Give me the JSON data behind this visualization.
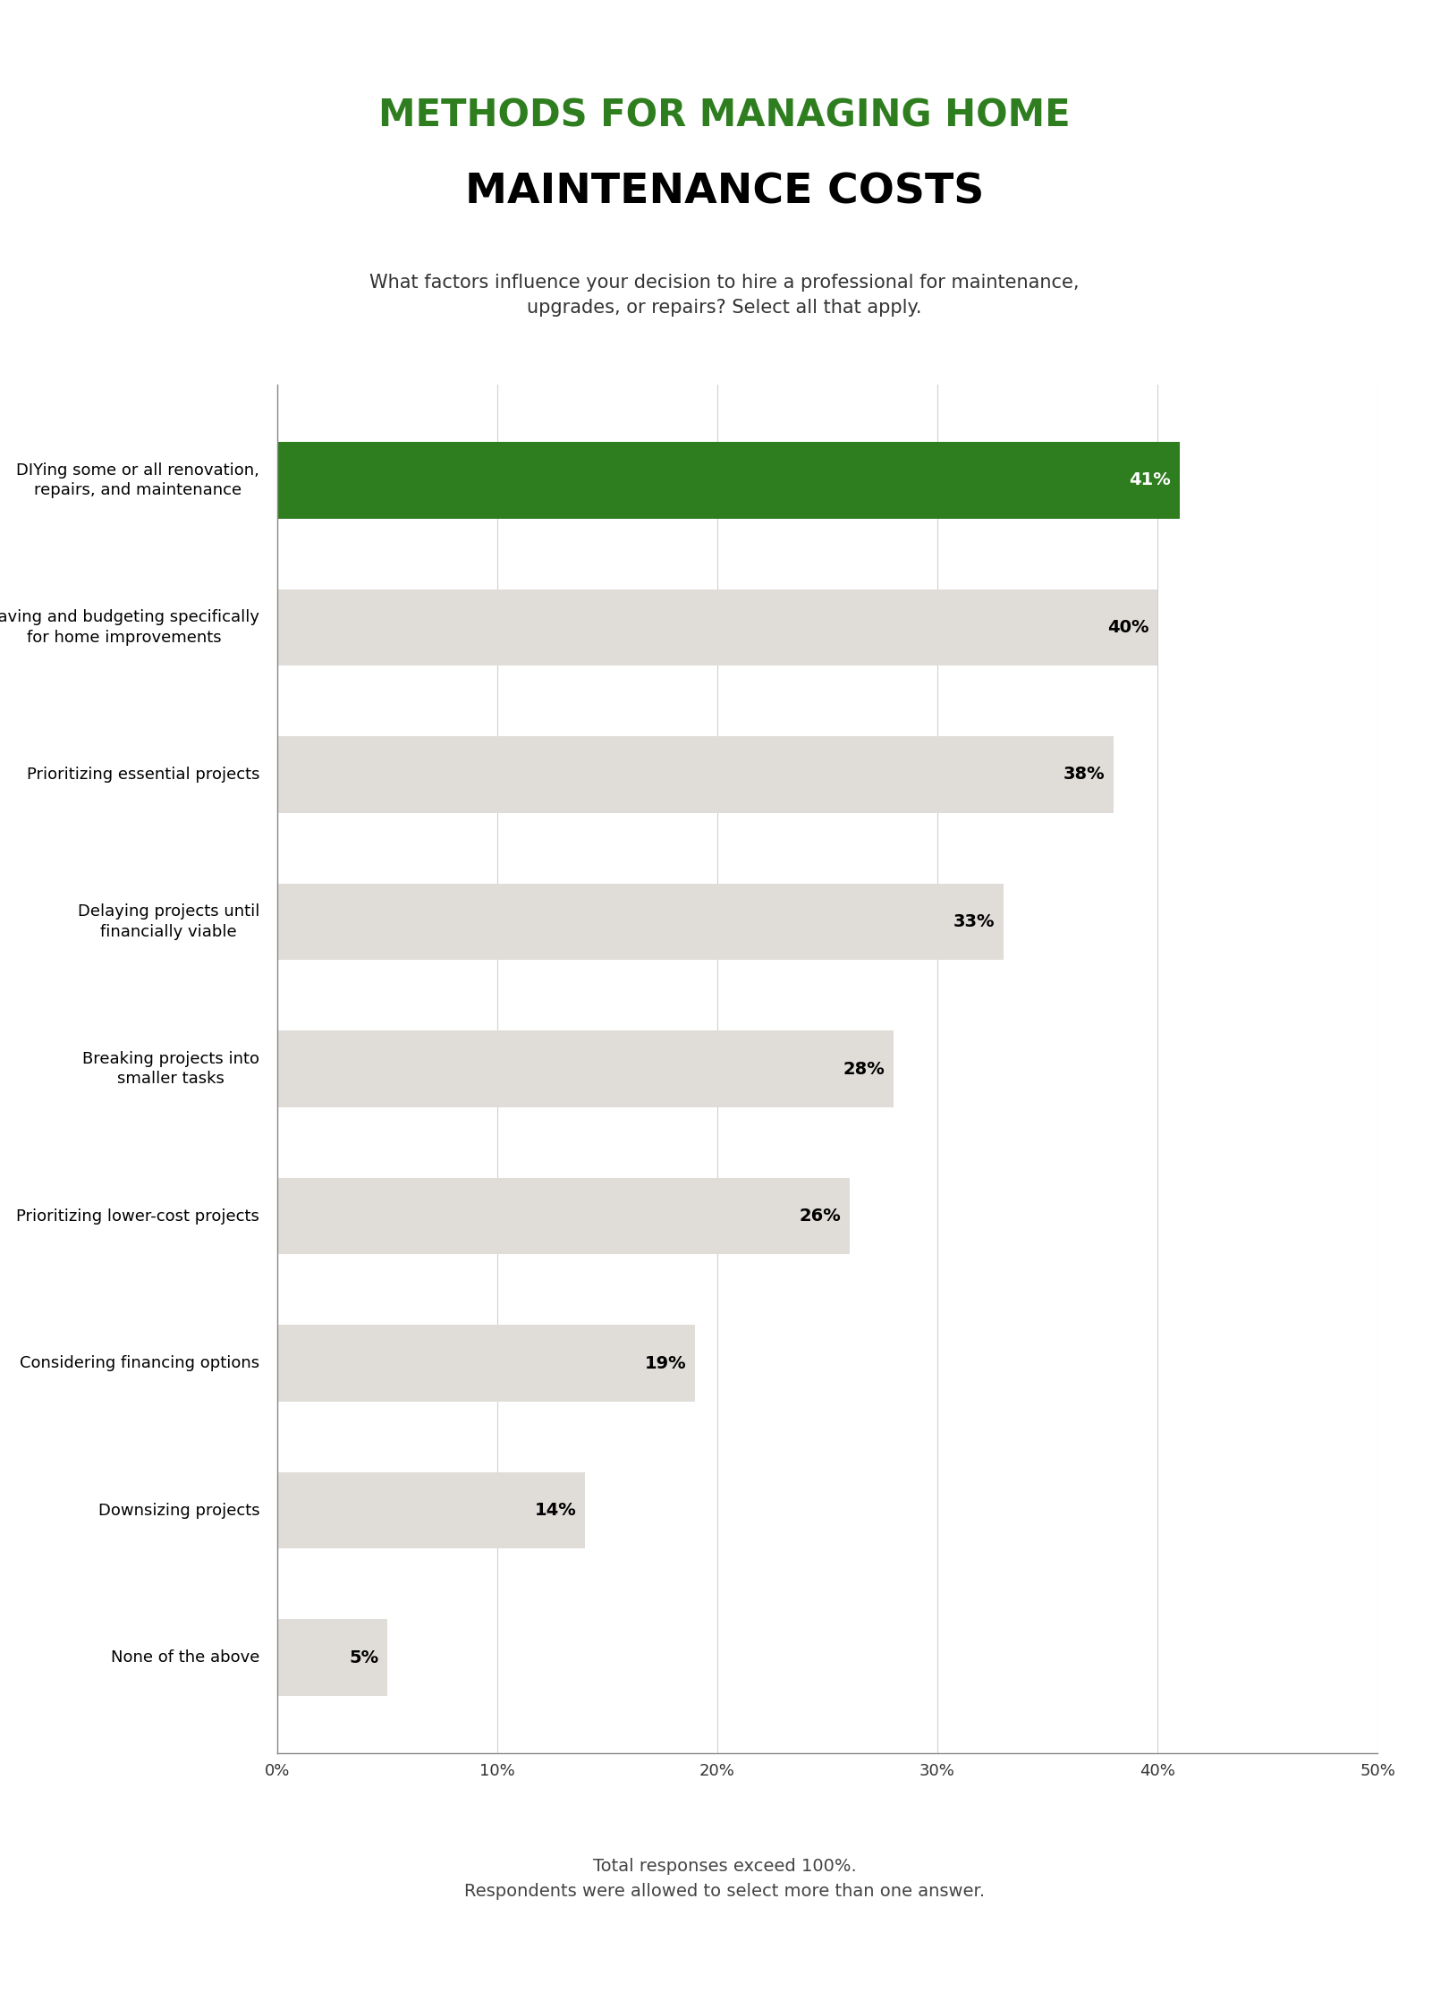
{
  "title_line1": "METHODS FOR MANAGING HOME",
  "title_line2": "MAINTENANCE COSTS",
  "subtitle": "What factors influence your decision to hire a professional for maintenance,\nupgrades, or repairs? Select all that apply.",
  "footer": "Total responses exceed 100%.\nRespondents were allowed to select more than one answer.",
  "categories": [
    "DIYing some or all renovation,\nrepairs, and maintenance",
    "Saving and budgeting specifically\nfor home improvements",
    "Prioritizing essential projects",
    "Delaying projects until\nfinancially viable",
    "Breaking projects into\nsmaller tasks",
    "Prioritizing lower-cost projects",
    "Considering financing options",
    "Downsizing projects",
    "None of the above"
  ],
  "values": [
    41,
    40,
    38,
    33,
    28,
    26,
    19,
    14,
    5
  ],
  "bar_colors": [
    "#2e7d1e",
    "#e0dcd8",
    "#e0dcd8",
    "#e0dcd8",
    "#e0dcd8",
    "#e0dcd8",
    "#e0dcd8",
    "#e0dcd8",
    "#e0dcd8"
  ],
  "label_colors": [
    "#ffffff",
    "#000000",
    "#000000",
    "#000000",
    "#000000",
    "#000000",
    "#000000",
    "#000000",
    "#000000"
  ],
  "title_line1_color": "#2e7d1e",
  "title_line2_color": "#000000",
  "subtitle_color": "#333333",
  "footer_color": "#444444",
  "background_color": "#ffffff",
  "xlim": [
    0,
    50
  ],
  "xticks": [
    0,
    10,
    20,
    30,
    40,
    50
  ],
  "grid_color": "#d0d0d0",
  "bar_height": 0.52,
  "title_line1_fontsize": 30,
  "title_line2_fontsize": 34,
  "subtitle_fontsize": 15,
  "label_fontsize": 14,
  "ylabel_fontsize": 13,
  "xlabel_fontsize": 13,
  "footer_fontsize": 14
}
